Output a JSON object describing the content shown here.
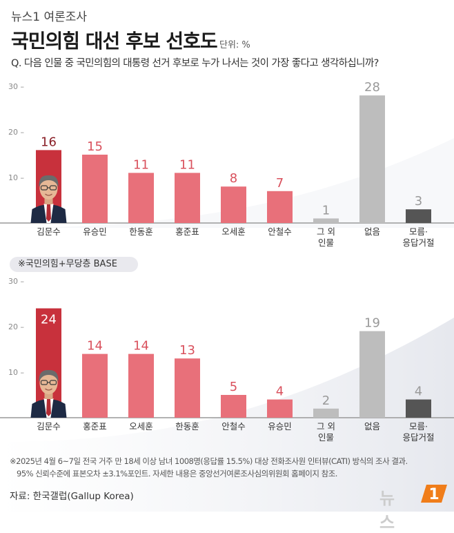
{
  "header": {
    "brand": "뉴스1 여론조사",
    "title": "국민의힘 대선 후보 선호도",
    "unit": "단위: %",
    "question": "Q. 다음 인물 중 국민의힘의 대통령 선거 후보로 누가 나서는 것이 가장 좋다고 생각하십니까?"
  },
  "base_label": "※국민의힘+무당층 BASE",
  "notes": [
    "※2025년 4월 6~7일 전국 거주 만 18세 이상 남녀 1008명(응답률 15.5%) 대상 전화조사원 인터뷰(CATI) 방식의 조사 결과.",
    "95% 신뢰수준에 표본오차 ±3.1%포인트. 자세한 내용은 중앙선거여론조사심의위원회 홈페이지 참조."
  ],
  "source": "자료: 한국갤럽(Gallup Korea)",
  "logo": {
    "text": "뉴스",
    "mark": "1"
  },
  "colors": {
    "highlight": "#c8313c",
    "candidate": "#e8707a",
    "other": "#bdbdbd",
    "none": "#bdbdbd",
    "unknown": "#555555"
  },
  "chart_data": [
    {
      "type": "bar",
      "title": "",
      "ylim": [
        0,
        30
      ],
      "yticks": [
        "10",
        "20",
        "30"
      ],
      "categories": [
        "김문수",
        "유승민",
        "한동훈",
        "홍준표",
        "오세훈",
        "안철수",
        "그 외 인물",
        "없음",
        "모름·응답거절"
      ],
      "category_lines": [
        [
          "김문수"
        ],
        [
          "유승민"
        ],
        [
          "한동훈"
        ],
        [
          "홍준표"
        ],
        [
          "오세훈"
        ],
        [
          "안철수"
        ],
        [
          "그 외",
          "인물"
        ],
        [
          "없음"
        ],
        [
          "모름·",
          "응답거절"
        ]
      ],
      "values": [
        16,
        15,
        11,
        11,
        8,
        7,
        1,
        28,
        3
      ],
      "value_labels": [
        "16",
        "15",
        "11",
        "11",
        "8",
        "7",
        "1",
        "28",
        "3"
      ],
      "bar_kinds": [
        "highlight",
        "candidate",
        "candidate",
        "candidate",
        "candidate",
        "candidate",
        "other",
        "none",
        "unknown"
      ],
      "grid": false
    },
    {
      "type": "bar",
      "title": "",
      "ylim": [
        0,
        30
      ],
      "yticks": [
        "10",
        "20",
        "30"
      ],
      "categories": [
        "김문수",
        "홍준표",
        "오세훈",
        "한동훈",
        "안철수",
        "유승민",
        "그 외 인물",
        "없음",
        "모름·응답거절"
      ],
      "category_lines": [
        [
          "김문수"
        ],
        [
          "홍준표"
        ],
        [
          "오세훈"
        ],
        [
          "한동훈"
        ],
        [
          "안철수"
        ],
        [
          "유승민"
        ],
        [
          "그 외",
          "인물"
        ],
        [
          "없음"
        ],
        [
          "모름·",
          "응답거절"
        ]
      ],
      "values": [
        24,
        14,
        14,
        13,
        5,
        4,
        2,
        19,
        4
      ],
      "value_labels": [
        "24",
        "14",
        "14",
        "13",
        "5",
        "4",
        "2",
        "19",
        "4"
      ],
      "bar_kinds": [
        "highlight",
        "candidate",
        "candidate",
        "candidate",
        "candidate",
        "candidate",
        "other",
        "none",
        "unknown"
      ],
      "grid": false
    }
  ]
}
